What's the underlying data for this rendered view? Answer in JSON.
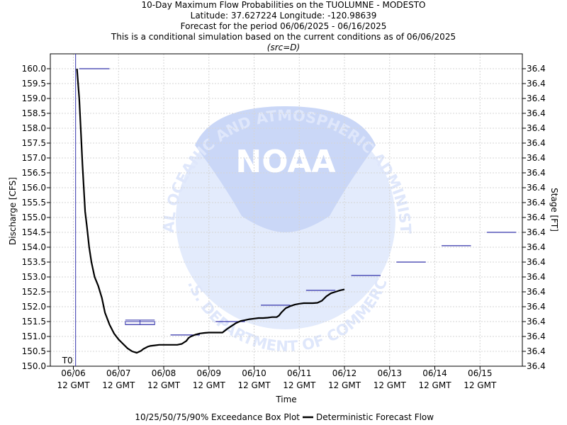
{
  "header": {
    "line1": "10-Day Maximum Flow Probabilities on the TUOLUMNE - MODESTO",
    "line2": "Latitude: 37.627224 Longitude: -120.98639",
    "line3": "Forecast for the period 06/06/2025 - 06/16/2025",
    "line4": "This is a conditional simulation based on the current conditions as of 06/06/2025",
    "line5": "(src=D)"
  },
  "watermark": {
    "arc_top": "NATIONAL OCEANIC AND ATMOSPHERIC ADMINISTRATION",
    "arc_bottom": "U.S. DEPARTMENT OF COMMERCE",
    "logo_text": "NOAA"
  },
  "colors": {
    "forecast_line": "#000000",
    "boxplot": "#3333aa",
    "t0_line": "#3333aa",
    "grid": "#cccccc",
    "watermark": "#dde6fb"
  },
  "chart_data": {
    "type": "line",
    "title": "10-Day Maximum Flow Probabilities on the TUOLUMNE - MODESTO",
    "xlabel": "Time",
    "ylabel": "Discharge [CFS]",
    "y2label": "Stage [FT]",
    "ylim": [
      150.0,
      160.0
    ],
    "y_ticks": [
      "150.0",
      "150.5",
      "151.0",
      "151.5",
      "152.0",
      "152.5",
      "153.0",
      "153.5",
      "154.0",
      "154.5",
      "155.0",
      "155.5",
      "156.0",
      "156.5",
      "157.0",
      "157.5",
      "158.0",
      "158.5",
      "159.0",
      "159.5",
      "160.0"
    ],
    "y2_ticks": [
      "36.4",
      "36.4",
      "36.4",
      "36.4",
      "36.4",
      "36.4",
      "36.4",
      "36.4",
      "36.4",
      "36.4",
      "36.4",
      "36.4",
      "36.4",
      "36.4",
      "36.4",
      "36.4",
      "36.4",
      "36.4",
      "36.4",
      "36.4",
      "36.4"
    ],
    "x_ticks": [
      {
        "x": 0,
        "date": "06/06",
        "time": "12 GMT"
      },
      {
        "x": 1,
        "date": "06/07",
        "time": "12 GMT"
      },
      {
        "x": 2,
        "date": "06/08",
        "time": "12 GMT"
      },
      {
        "x": 3,
        "date": "06/09",
        "time": "12 GMT"
      },
      {
        "x": 4,
        "date": "06/10",
        "time": "12 GMT"
      },
      {
        "x": 5,
        "date": "06/11",
        "time": "12 GMT"
      },
      {
        "x": 6,
        "date": "06/12",
        "time": "12 GMT"
      },
      {
        "x": 7,
        "date": "06/13",
        "time": "12 GMT"
      },
      {
        "x": 8,
        "date": "06/14",
        "time": "12 GMT"
      },
      {
        "x": 9,
        "date": "06/15",
        "time": "12 GMT"
      }
    ],
    "t0_label": "T0",
    "t0_x": 0.05,
    "series": [
      {
        "name": "Deterministic Forecast Flow",
        "x": [
          0.08,
          0.13,
          0.17,
          0.2,
          0.23,
          0.26,
          0.3,
          0.35,
          0.4,
          0.47,
          0.55,
          0.63,
          0.7,
          0.8,
          0.9,
          1.0,
          1.1,
          1.2,
          1.3,
          1.4,
          1.5,
          1.55,
          1.6,
          1.65,
          1.7,
          1.8,
          1.9,
          2.0,
          2.1,
          2.2,
          2.3,
          2.4,
          2.5,
          2.55,
          2.6,
          2.7,
          2.8,
          2.9,
          3.0,
          3.1,
          3.2,
          3.3,
          3.4,
          3.5,
          3.6,
          3.7,
          3.8,
          3.9,
          4.0,
          4.1,
          4.2,
          4.3,
          4.4,
          4.5,
          4.55,
          4.6,
          4.7,
          4.8,
          4.9,
          5.0,
          5.1,
          5.2,
          5.3,
          5.4,
          5.5,
          5.6,
          5.7,
          5.8,
          5.9,
          6.0
        ],
        "values": [
          160.0,
          159.0,
          157.8,
          156.8,
          156.0,
          155.2,
          154.7,
          154.0,
          153.5,
          153.0,
          152.7,
          152.3,
          151.8,
          151.4,
          151.1,
          150.9,
          150.75,
          150.6,
          150.5,
          150.45,
          150.52,
          150.58,
          150.62,
          150.66,
          150.68,
          150.7,
          150.72,
          150.72,
          150.72,
          150.72,
          150.72,
          150.75,
          150.85,
          150.95,
          151.0,
          151.06,
          151.1,
          151.12,
          151.13,
          151.13,
          151.13,
          151.13,
          151.25,
          151.35,
          151.45,
          151.52,
          151.55,
          151.58,
          151.6,
          151.62,
          151.62,
          151.63,
          151.65,
          151.65,
          151.7,
          151.8,
          151.95,
          152.02,
          152.07,
          152.1,
          152.12,
          152.12,
          152.12,
          152.13,
          152.2,
          152.35,
          152.45,
          152.5,
          152.55,
          152.58
        ]
      },
      {
        "name": "10/25/50/75/90% Exceedance Box Plot",
        "boxes": [
          {
            "x_start": 0.13,
            "x_end": 0.8,
            "p10": 160.0,
            "p25": 160.0,
            "p50": 160.0,
            "p75": 160.0,
            "p90": 160.0
          },
          {
            "x_start": 1.15,
            "x_end": 1.8,
            "p10": 151.4,
            "p25": 151.4,
            "p50": 151.4,
            "p75": 151.5,
            "p90": 151.55
          },
          {
            "x_start": 2.15,
            "x_end": 2.8,
            "p10": 151.05,
            "p25": 151.05,
            "p50": 151.05,
            "p75": 151.05,
            "p90": 151.05
          },
          {
            "x_start": 3.15,
            "x_end": 3.8,
            "p10": 151.5,
            "p25": 151.5,
            "p50": 151.5,
            "p75": 151.5,
            "p90": 151.5
          },
          {
            "x_start": 4.15,
            "x_end": 4.8,
            "p10": 152.05,
            "p25": 152.05,
            "p50": 152.05,
            "p75": 152.05,
            "p90": 152.05
          },
          {
            "x_start": 5.15,
            "x_end": 5.8,
            "p10": 152.55,
            "p25": 152.55,
            "p50": 152.55,
            "p75": 152.55,
            "p90": 152.55
          },
          {
            "x_start": 6.15,
            "x_end": 6.8,
            "p10": 153.05,
            "p25": 153.05,
            "p50": 153.05,
            "p75": 153.05,
            "p90": 153.05
          },
          {
            "x_start": 7.15,
            "x_end": 7.8,
            "p10": 153.5,
            "p25": 153.5,
            "p50": 153.5,
            "p75": 153.5,
            "p90": 153.5
          },
          {
            "x_start": 8.15,
            "x_end": 8.8,
            "p10": 154.05,
            "p25": 154.05,
            "p50": 154.05,
            "p75": 154.05,
            "p90": 154.05
          },
          {
            "x_start": 9.15,
            "x_end": 9.8,
            "p10": 154.5,
            "p25": 154.5,
            "p50": 154.5,
            "p75": 154.5,
            "p90": 154.5
          }
        ]
      }
    ],
    "grid": true,
    "legend_position": "bottom-center",
    "legend": {
      "boxplot_label": "10/25/50/75/90% Exceedance Box Plot",
      "line_label": "Deterministic Forecast Flow"
    }
  }
}
